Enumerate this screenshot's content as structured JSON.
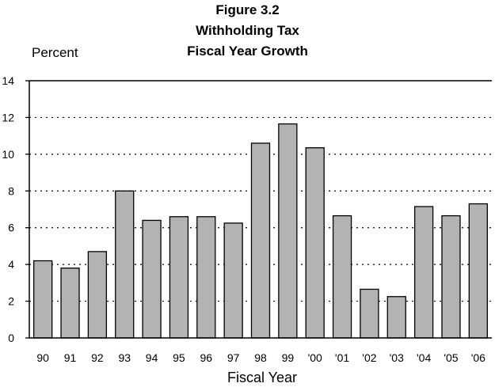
{
  "chart_data": {
    "type": "bar",
    "title_lines": [
      "Figure 3.2",
      "Withholding Tax",
      "Fiscal Year Growth"
    ],
    "ylabel": "Percent",
    "xlabel": "Fiscal Year",
    "categories": [
      "90",
      "91",
      "92",
      "93",
      "94",
      "95",
      "96",
      "97",
      "98",
      "99",
      "'00",
      "'01",
      "'02",
      "'03",
      "'04",
      "'05",
      "'06"
    ],
    "values": [
      4.2,
      3.8,
      4.7,
      8.0,
      6.4,
      6.6,
      6.6,
      6.25,
      10.6,
      11.65,
      10.35,
      6.65,
      2.65,
      2.25,
      7.15,
      6.65,
      7.3
    ],
    "ylim": [
      0,
      14
    ],
    "yticks": [
      0,
      2,
      4,
      6,
      8,
      10,
      12,
      14
    ],
    "grid": true,
    "colors": {
      "bar": "#b3b3b3",
      "outline": "#000000"
    }
  }
}
